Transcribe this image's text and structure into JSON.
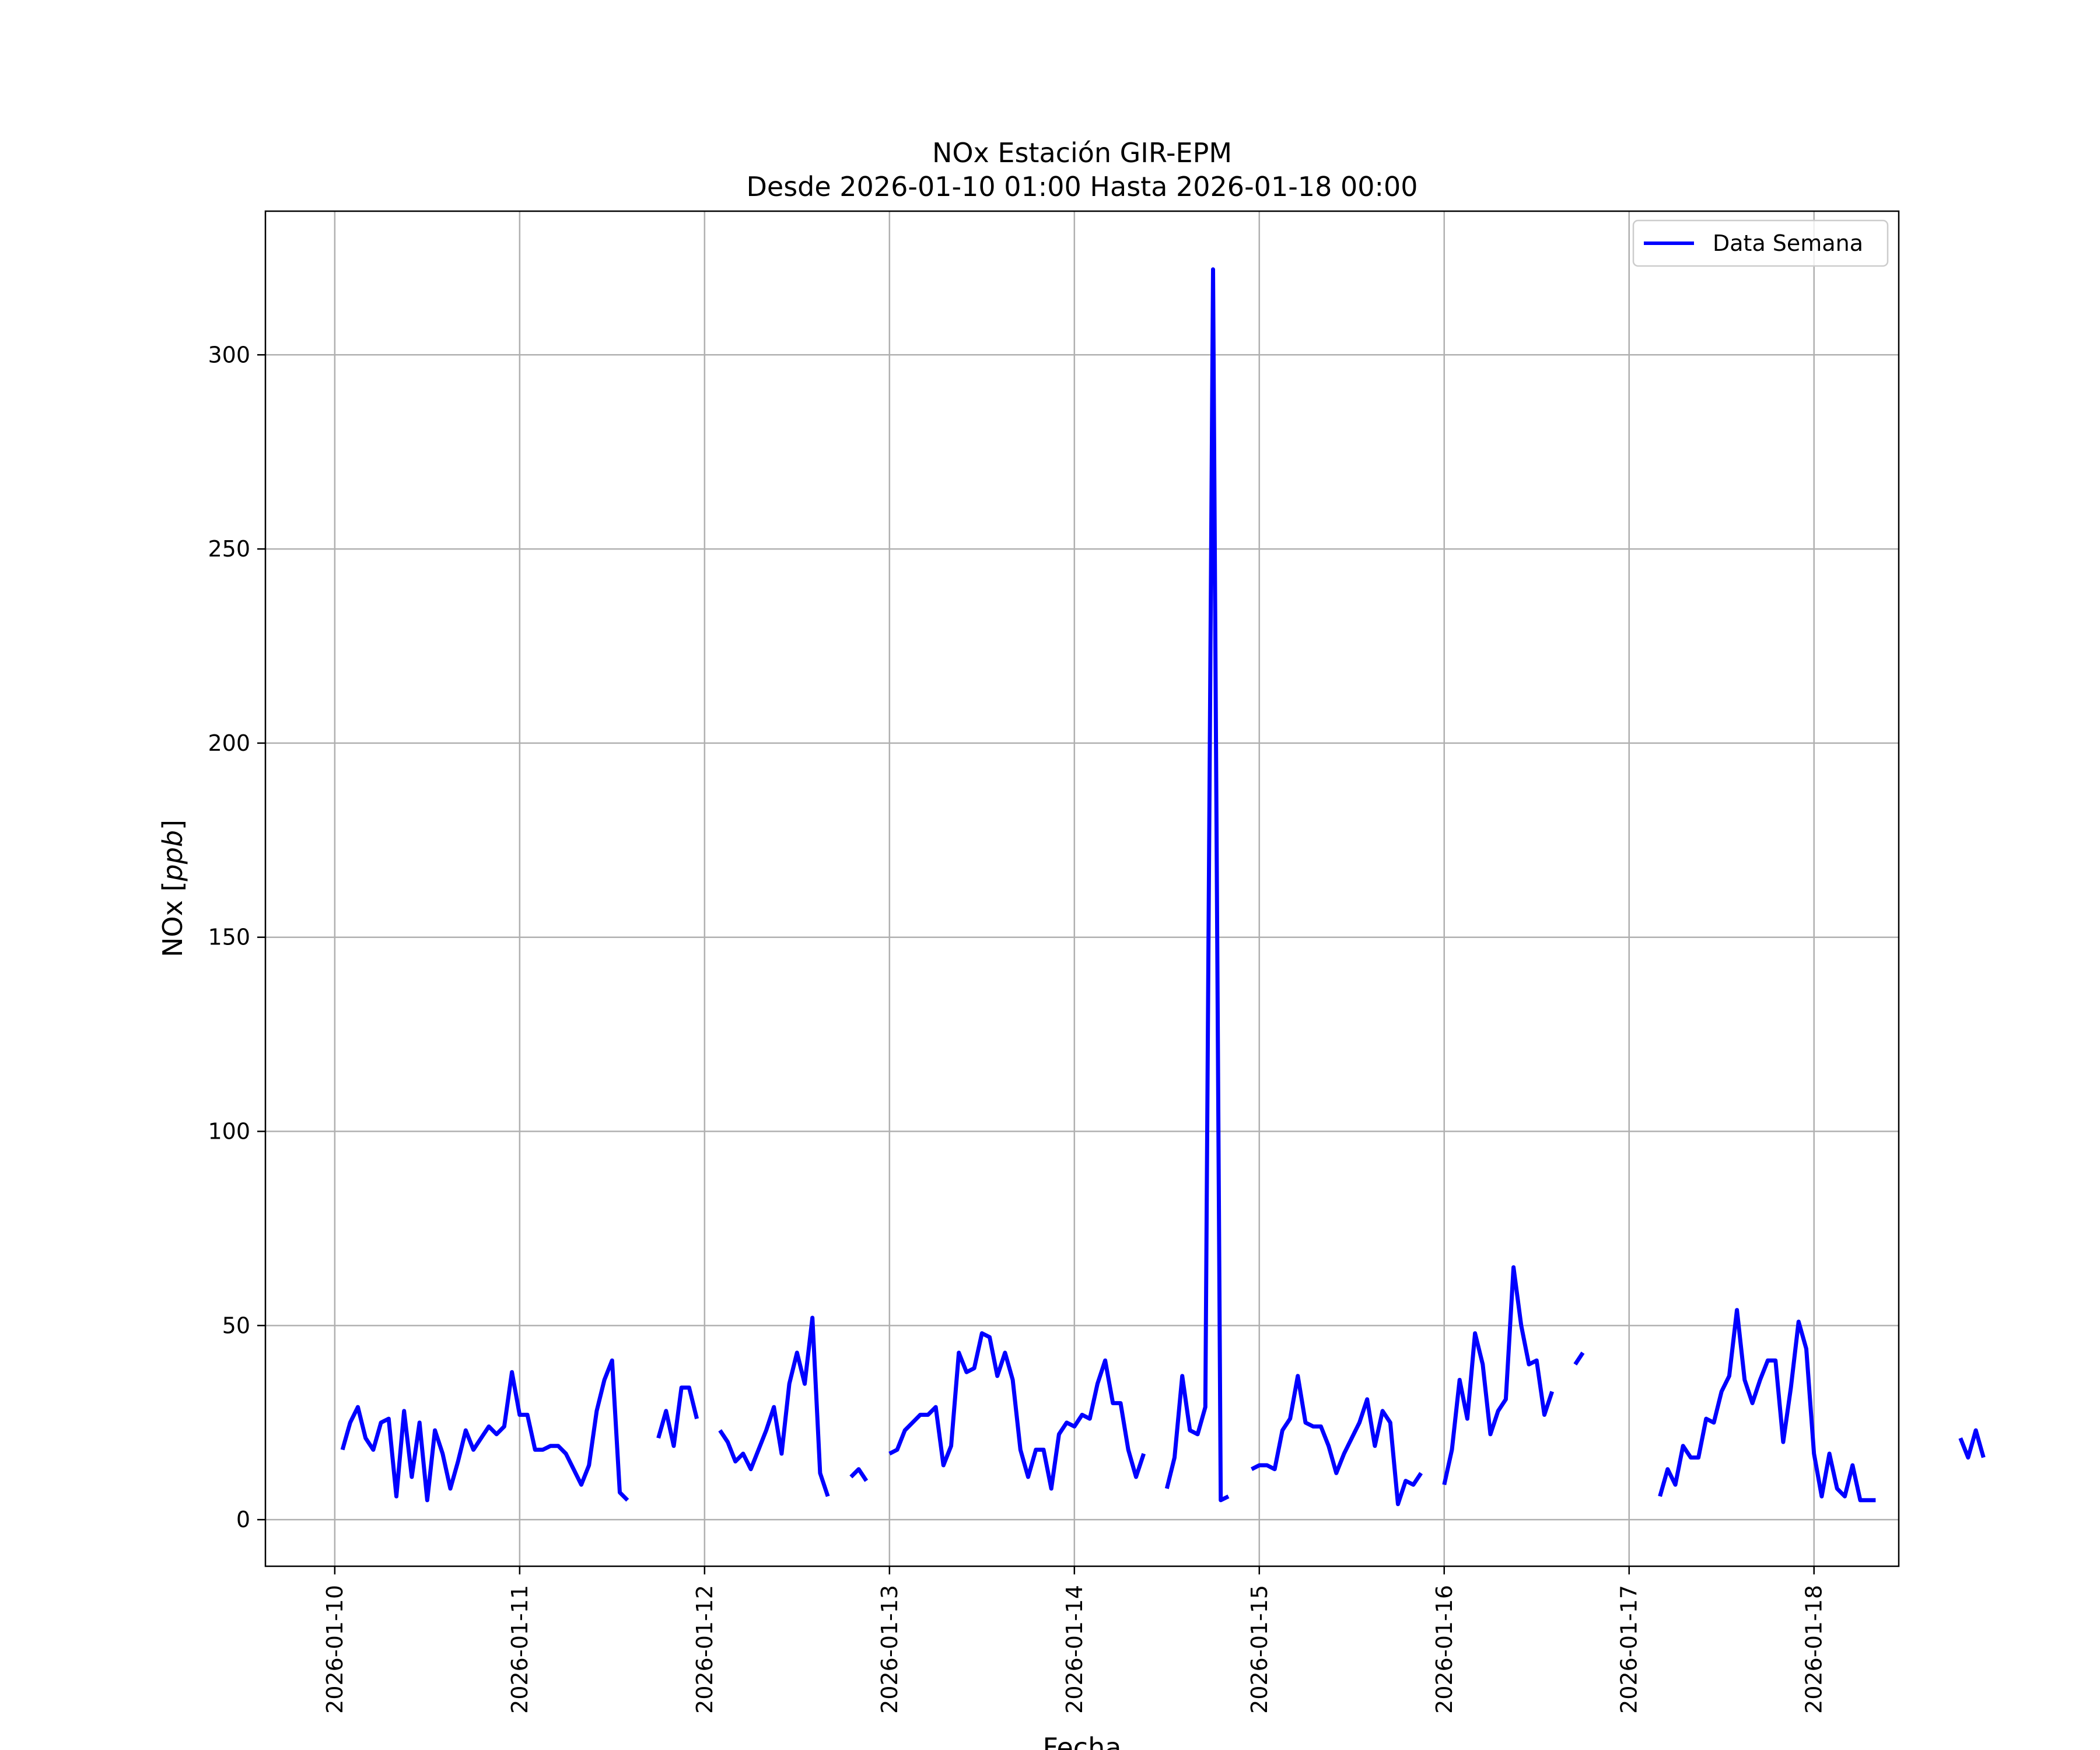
{
  "chart_data": {
    "type": "line",
    "title": "NOx Estación GIR-EPM",
    "subtitle": "Desde 2026-01-10 01:00 Hasta 2026-01-18 00:00",
    "xlabel": "Fecha",
    "ylabel_prefix": "NOx [",
    "ylabel_unit": "ppb",
    "ylabel_suffix": "]",
    "ylim": [
      -12,
      337
    ],
    "xlim": [
      "2026-01-09 15:00",
      "2026-01-18 11:00"
    ],
    "grid": true,
    "legend_position": "top-right",
    "line_color": "#0000ff",
    "x_ticks": [
      "2026-01-10",
      "2026-01-11",
      "2026-01-12",
      "2026-01-13",
      "2026-01-14",
      "2026-01-15",
      "2026-01-16",
      "2026-01-17",
      "2026-01-18"
    ],
    "y_ticks": [
      "0",
      "50",
      "100",
      "150",
      "200",
      "250",
      "300"
    ],
    "y_tick_values": [
      0,
      50,
      100,
      150,
      200,
      250,
      300
    ],
    "series": [
      {
        "name": "Data Semana",
        "x_start": "2026-01-10 01:00",
        "x_step": "1 hour",
        "values": [
          18,
          25,
          29,
          21,
          18,
          25,
          26,
          6,
          28,
          11,
          25,
          5,
          23,
          17,
          8,
          15,
          23,
          18,
          21,
          24,
          22,
          24,
          38,
          27,
          27,
          18,
          18,
          19,
          19,
          17,
          13,
          9,
          14,
          28,
          36,
          41,
          7,
          5,
          null,
          null,
          null,
          21,
          28,
          19,
          34,
          34,
          26,
          null,
          null,
          23,
          20,
          15,
          17,
          13,
          18,
          23,
          29,
          17,
          35,
          43,
          35,
          52,
          12,
          6,
          null,
          null,
          11,
          13,
          10,
          null,
          null,
          17,
          18,
          23,
          25,
          27,
          27,
          29,
          14,
          19,
          43,
          38,
          39,
          48,
          47,
          37,
          43,
          36,
          18,
          11,
          18,
          18,
          8,
          22,
          25,
          24,
          27,
          26,
          35,
          41,
          30,
          30,
          18,
          11,
          17,
          null,
          null,
          8,
          16,
          37,
          23,
          22,
          29,
          322,
          5,
          6,
          null,
          null,
          13,
          14,
          14,
          13,
          23,
          26,
          37,
          25,
          24,
          24,
          19,
          12,
          17,
          21,
          25,
          31,
          19,
          28,
          25,
          4,
          10,
          9,
          12,
          null,
          null,
          9,
          18,
          36,
          26,
          48,
          40,
          22,
          28,
          31,
          65,
          50,
          40,
          41,
          27,
          33,
          null,
          null,
          40,
          43,
          null,
          null,
          null,
          null,
          null,
          null,
          null,
          null,
          null,
          6,
          13,
          9,
          19,
          16,
          16,
          26,
          25,
          33,
          37,
          54,
          36,
          30,
          36,
          41,
          41,
          20,
          34,
          51,
          44,
          17,
          6,
          17,
          8,
          6,
          14,
          5,
          5,
          5,
          null,
          null,
          null,
          null,
          null,
          null,
          null,
          null,
          null,
          null,
          21,
          16,
          23,
          16
        ]
      }
    ]
  }
}
